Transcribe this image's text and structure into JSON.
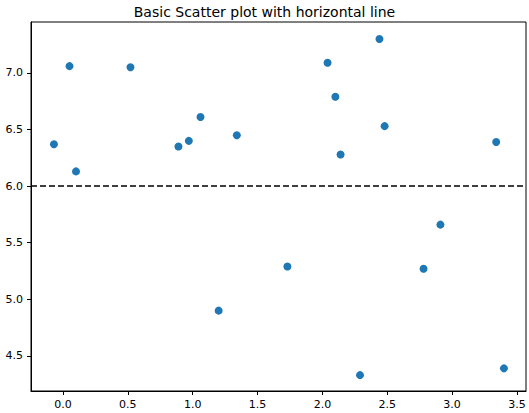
{
  "chart_data": {
    "type": "scatter",
    "title": "Basic Scatter plot with horizontal line",
    "x": [
      -0.07,
      0.05,
      0.1,
      0.52,
      0.89,
      0.97,
      1.06,
      1.34,
      1.2,
      1.73,
      2.04,
      2.1,
      2.14,
      2.44,
      2.48,
      2.29,
      2.78,
      2.91,
      3.34,
      3.4
    ],
    "values": [
      6.37,
      7.06,
      6.13,
      7.05,
      6.35,
      6.4,
      6.61,
      6.45,
      4.9,
      5.29,
      7.09,
      6.79,
      6.28,
      7.3,
      6.53,
      4.33,
      5.27,
      5.66,
      6.39,
      4.39
    ],
    "color": "#1f77b4",
    "marker": "circle",
    "xlim": [
      -0.247,
      3.57
    ],
    "ylim": [
      4.19,
      7.45
    ],
    "xticks": [
      {
        "value": 0,
        "label": "0.0"
      },
      0.5,
      {
        "value": 1,
        "label": "1.0"
      },
      1.5,
      {
        "value": 2,
        "label": "2.0"
      },
      2.5,
      {
        "value": 3,
        "label": "3.0"
      },
      3.5
    ],
    "yticks": [
      4.5,
      {
        "value": 5,
        "label": "5.0"
      },
      5.5,
      {
        "value": 6,
        "label": "6.0"
      },
      6.5,
      {
        "value": 7,
        "label": "7.0"
      }
    ],
    "hline": {
      "value": 6,
      "color": "#000000",
      "line_style": "dashed"
    },
    "grid": false
  }
}
